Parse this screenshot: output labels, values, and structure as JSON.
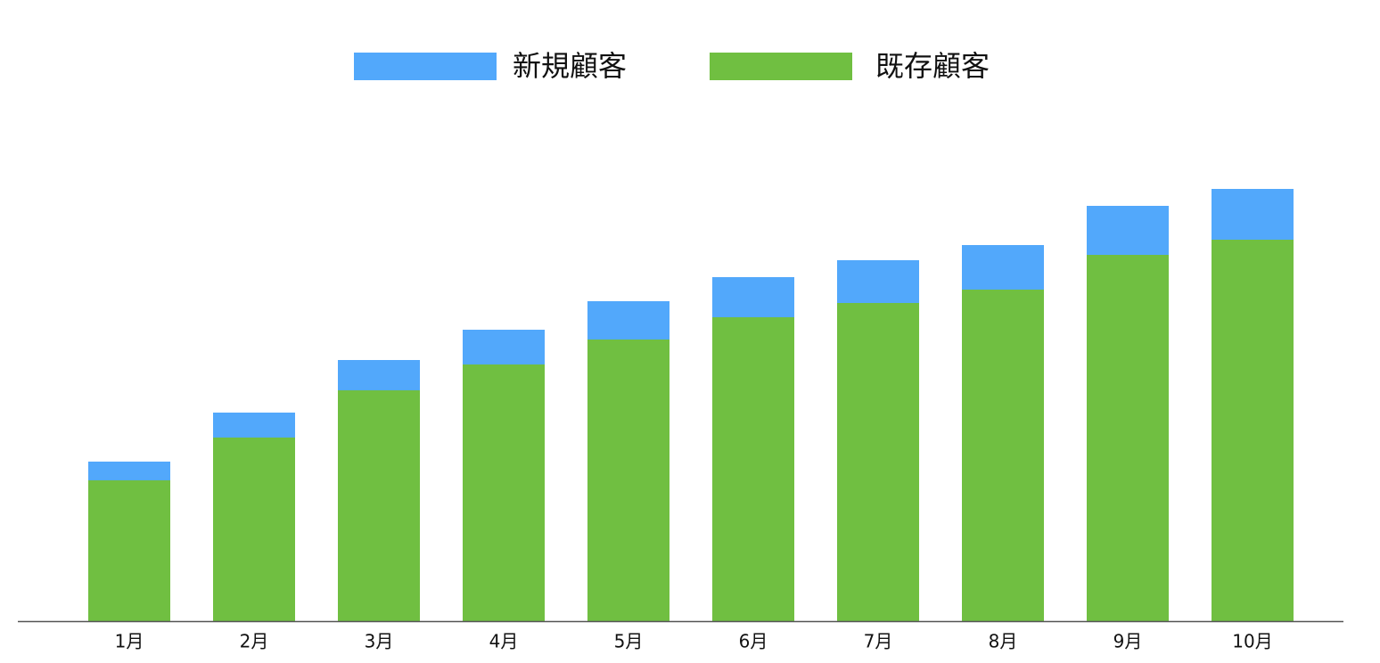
{
  "chart_data": {
    "type": "stacked_bar",
    "categories": [
      "1月",
      "2月",
      "3月",
      "4月",
      "5月",
      "6月",
      "7月",
      "8月",
      "9月",
      "10月"
    ],
    "series": [
      {
        "name": "新規顧客",
        "color": "#52a8fb",
        "values": [
          21,
          28,
          34,
          39,
          43,
          45,
          48,
          50,
          55,
          57
        ]
      },
      {
        "name": "既存顧客",
        "color": "#70bf41",
        "values": [
          158,
          206,
          259,
          288,
          316,
          341,
          357,
          372,
          411,
          428
        ]
      }
    ],
    "ylim": [
      0,
      500
    ]
  }
}
